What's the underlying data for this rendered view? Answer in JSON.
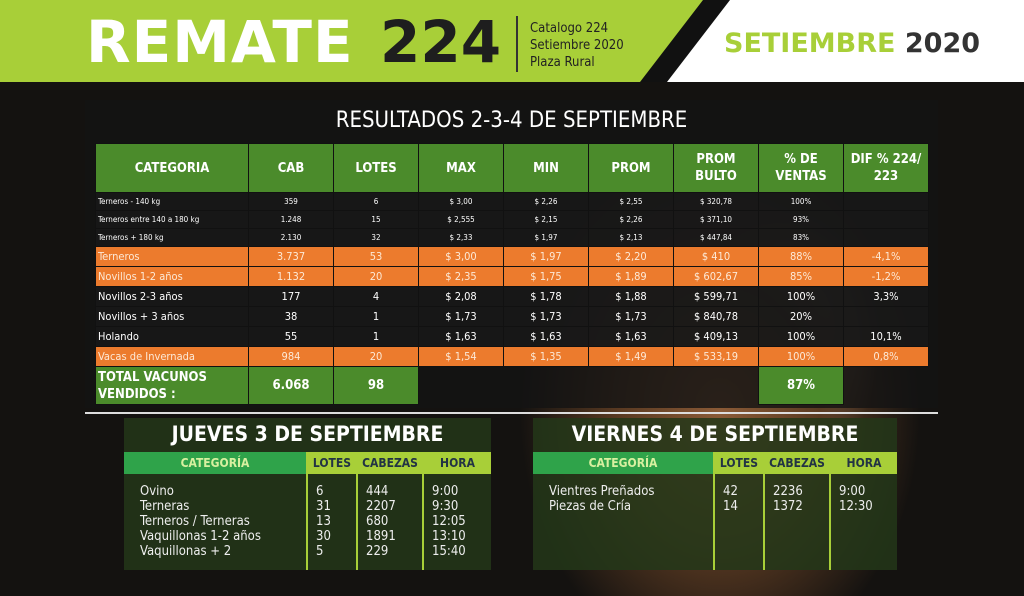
{
  "header": {
    "title": "REMATE",
    "number": "224",
    "catalog": [
      "Catalogo 224",
      "Setiembre 2020",
      "Plaza Rural"
    ],
    "month": "SETIEMBRE",
    "year": "2020"
  },
  "results": {
    "title": "RESULTADOS 2-3-4 DE SEPTIEMBRE",
    "columns": [
      "CATEGORIA",
      "CAB",
      "LOTES",
      "MAX",
      "MIN",
      "PROM",
      "PROM BULTO",
      "% DE VENTAS",
      "DIF % 224/ 223"
    ],
    "rows": [
      {
        "style": "s",
        "cells": [
          "Terneros - 140 kg",
          "359",
          "6",
          "$ 3,00",
          "$ 2,26",
          "$ 2,55",
          "$ 320,78",
          "100%",
          ""
        ]
      },
      {
        "style": "s",
        "cells": [
          "Terneros entre 140 a 180 kg",
          "1.248",
          "15",
          "$ 2,555",
          "$ 2,15",
          "$ 2,26",
          "$ 371,10",
          "93%",
          ""
        ]
      },
      {
        "style": "s",
        "cells": [
          "Terneros + 180 kg",
          "2.130",
          "32",
          "$ 2,33",
          "$ 1,97",
          "$ 2,13",
          "$ 447,84",
          "83%",
          ""
        ]
      },
      {
        "style": "o",
        "cells": [
          "Terneros",
          "3.737",
          "53",
          "$ 3,00",
          "$ 1,97",
          "$ 2,20",
          "$ 410",
          "88%",
          "-4,1%"
        ]
      },
      {
        "style": "o",
        "cells": [
          "Novillos 1-2 años",
          "1.132",
          "20",
          "$ 2,35",
          "$ 1,75",
          "$ 1,89",
          "$ 602,67",
          "85%",
          "-1,2%"
        ]
      },
      {
        "style": "n",
        "cells": [
          "Novillos 2-3 años",
          "177",
          "4",
          "$ 2,08",
          "$ 1,78",
          "$ 1,88",
          "$ 599,71",
          "100%",
          "3,3%"
        ]
      },
      {
        "style": "n",
        "cells": [
          "Novillos + 3 años",
          "38",
          "1",
          "$ 1,73",
          "$ 1,73",
          "$ 1,73",
          "$ 840,78",
          "20%",
          ""
        ]
      },
      {
        "style": "n",
        "cells": [
          "Holando",
          "55",
          "1",
          "$ 1,63",
          "$ 1,63",
          "$ 1,63",
          "$ 409,13",
          "100%",
          "10,1%"
        ]
      },
      {
        "style": "o",
        "cells": [
          "Vacas de Invernada",
          "984",
          "20",
          "$ 1,54",
          "$ 1,35",
          "$ 1,49",
          "$ 533,19",
          "100%",
          "0,8%"
        ]
      }
    ],
    "total": {
      "label": "TOTAL VACUNOS VENDIDOS :",
      "cab": "6.068",
      "lotes": "98",
      "ventas": "87%"
    }
  },
  "thursday": {
    "title": "JUEVES 3 DE SEPTIEMBRE",
    "headers": [
      "CATEGORÍA",
      "LOTES",
      "CABEZAS",
      "HORA"
    ],
    "categories": "Ovino\nTerneras\nTerneros / Terneras\nVaquillonas 1-2 años\nVaquillonas + 2",
    "lotes": "6\n31\n13\n30\n5",
    "cabezas": "444\n2207\n680\n1891\n229",
    "hora": "9:00\n9:30\n12:05\n13:10\n15:40"
  },
  "friday": {
    "title": "VIERNES 4 DE SEPTIEMBRE",
    "headers": [
      "CATEGORÍA",
      "LOTES",
      "CABEZAS",
      "HORA"
    ],
    "categories": "Vientres Preñados\nPiezas de Cría",
    "lotes": "42\n14",
    "cabezas": "2236\n1372",
    "hora": "9:00\n12:30"
  },
  "colors": {
    "lime": "#a8cf38",
    "green": "#4b8b2b",
    "orange": "#ec7b2d"
  }
}
